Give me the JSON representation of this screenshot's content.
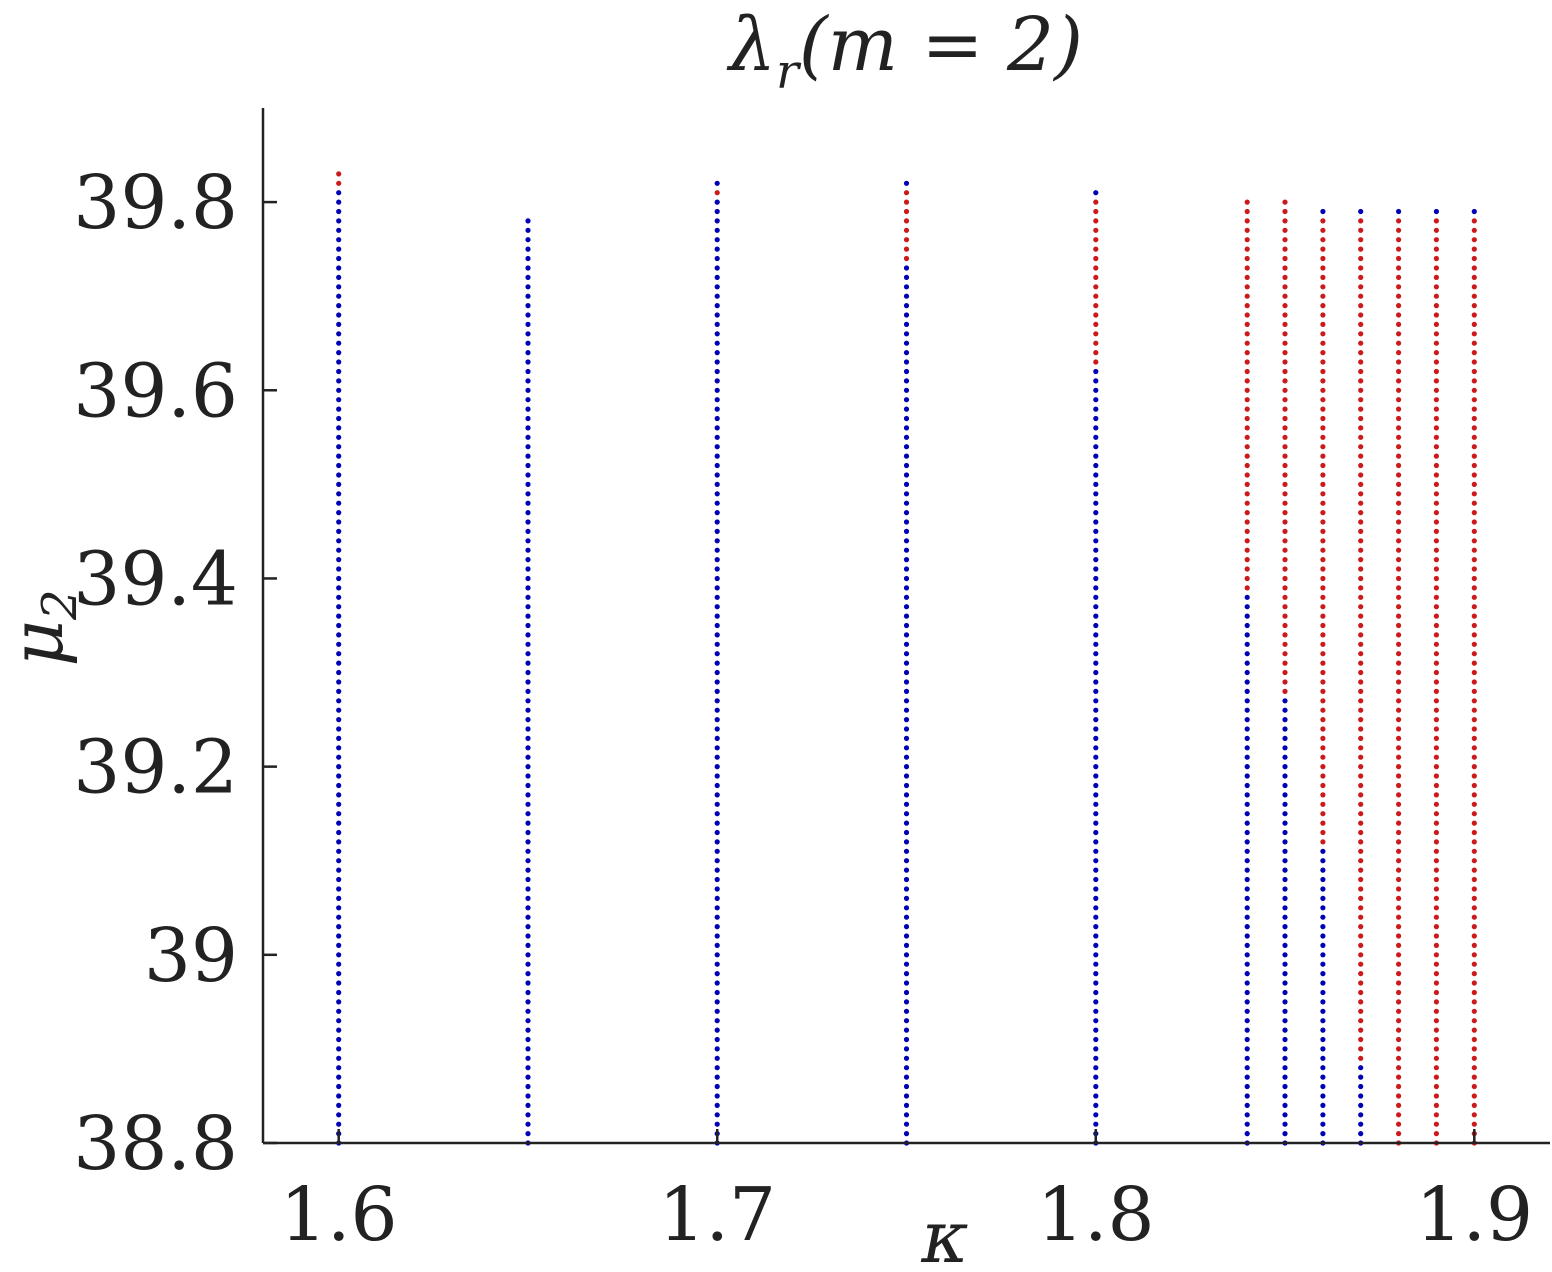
{
  "chart_data": {
    "type": "scatter",
    "title": {
      "main": "λ",
      "sub": "r",
      "rest": "(m = 2)"
    },
    "xlabel": "κ",
    "ylabel": {
      "main": "μ",
      "sub": "2"
    },
    "xlim": [
      1.58,
      1.92
    ],
    "ylim": [
      38.8,
      39.9
    ],
    "xticks": [
      1.6,
      1.7,
      1.8,
      1.9
    ],
    "xtick_labels": [
      "1.6",
      "1.7",
      "1.8",
      "1.9"
    ],
    "yticks": [
      38.8,
      39.0,
      39.2,
      39.4,
      39.6,
      39.8
    ],
    "ytick_labels": [
      "38.8",
      "39",
      "39.2",
      "39.4",
      "39.6",
      "39.8"
    ],
    "colors": {
      "blue": "#0000b4",
      "red": "#cc1a1a",
      "axis": "#222222"
    },
    "grid": false,
    "y_step": 0.01,
    "columns": [
      {
        "kappa": 1.6,
        "y_min": 38.8,
        "y_max": 39.83,
        "red_from": 39.82
      },
      {
        "kappa": 1.65,
        "y_min": 38.8,
        "y_max": 39.78,
        "red_from": null
      },
      {
        "kappa": 1.7,
        "y_min": 38.8,
        "y_max": 39.82,
        "red_from": 39.81
      },
      {
        "kappa": 1.75,
        "y_min": 38.8,
        "y_max": 39.82,
        "red_from": 39.74
      },
      {
        "kappa": 1.8,
        "y_min": 38.8,
        "y_max": 39.81,
        "red_from": 39.63
      },
      {
        "kappa": 1.84,
        "y_min": 38.8,
        "y_max": 39.8,
        "red_from": 39.39
      },
      {
        "kappa": 1.85,
        "y_min": 38.8,
        "y_max": 39.8,
        "red_from": 39.28
      },
      {
        "kappa": 1.86,
        "y_min": 38.8,
        "y_max": 39.79,
        "red_from": 39.12
      },
      {
        "kappa": 1.87,
        "y_min": 38.8,
        "y_max": 39.79,
        "red_from": 38.89
      },
      {
        "kappa": 1.88,
        "y_min": 38.8,
        "y_max": 39.79,
        "red_from": 38.8
      },
      {
        "kappa": 1.89,
        "y_min": 38.8,
        "y_max": 39.79,
        "red_from": 38.8
      },
      {
        "kappa": 1.9,
        "y_min": 38.8,
        "y_max": 39.79,
        "red_from": 38.8
      }
    ],
    "column_tops": [
      {
        "kappa": 1.6,
        "color": "red"
      },
      {
        "kappa": 1.65,
        "color": "blue"
      },
      {
        "kappa": 1.7,
        "color": "blue"
      },
      {
        "kappa": 1.75,
        "color": "blue"
      },
      {
        "kappa": 1.8,
        "color": "blue"
      },
      {
        "kappa": 1.84,
        "color": "red"
      },
      {
        "kappa": 1.85,
        "color": "red"
      },
      {
        "kappa": 1.86,
        "color": "blue"
      },
      {
        "kappa": 1.87,
        "color": "blue"
      },
      {
        "kappa": 1.88,
        "color": "blue"
      },
      {
        "kappa": 1.89,
        "color": "blue"
      },
      {
        "kappa": 1.9,
        "color": "blue"
      }
    ]
  }
}
